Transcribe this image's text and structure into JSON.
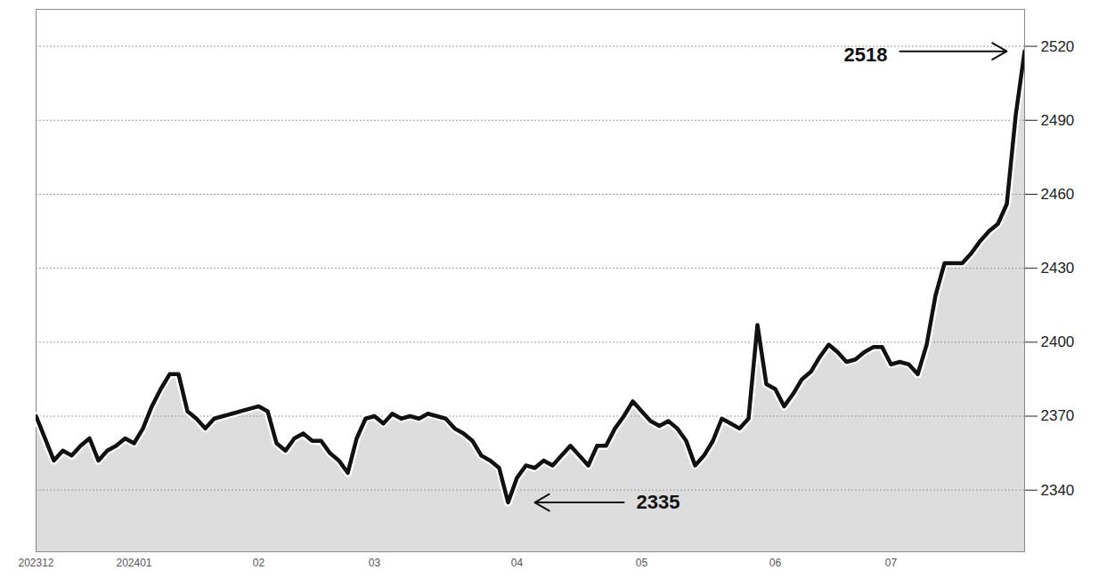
{
  "chart_data": {
    "type": "line",
    "categories": [
      "202312",
      null,
      null,
      null,
      null,
      null,
      null,
      null,
      null,
      null,
      null,
      "202401",
      null,
      null,
      null,
      null,
      null,
      null,
      null,
      null,
      null,
      null,
      null,
      null,
      null,
      "02",
      null,
      null,
      null,
      null,
      null,
      null,
      null,
      null,
      null,
      null,
      null,
      null,
      "03",
      null,
      null,
      null,
      null,
      null,
      null,
      null,
      null,
      null,
      null,
      null,
      null,
      null,
      null,
      null,
      "04",
      null,
      null,
      null,
      null,
      null,
      null,
      null,
      null,
      null,
      null,
      null,
      null,
      null,
      "05",
      null,
      null,
      null,
      null,
      null,
      null,
      null,
      null,
      null,
      null,
      null,
      null,
      null,
      null,
      "06",
      null,
      null,
      null,
      null,
      null,
      null,
      null,
      null,
      null,
      null,
      null,
      null,
      "07",
      null,
      null,
      null,
      null,
      null,
      null,
      null,
      null,
      null,
      null,
      null,
      null,
      null,
      null,
      null
    ],
    "values": [
      2370,
      2361,
      2352,
      2356,
      2354,
      2358,
      2361,
      2352,
      2356,
      2358,
      2361,
      2359,
      2365,
      2374,
      2381,
      2387,
      2387,
      2372,
      2369,
      2365,
      2369,
      2370,
      2371,
      2372,
      2373,
      2374,
      2372,
      2359,
      2356,
      2361,
      2363,
      2360,
      2360,
      2355,
      2352,
      2347,
      2361,
      2369,
      2370,
      2367,
      2371,
      2369,
      2370,
      2369,
      2371,
      2370,
      2369,
      2365,
      2363,
      2360,
      2354,
      2352,
      2349,
      2335,
      2345,
      2350,
      2349,
      2352,
      2350,
      2354,
      2358,
      2354,
      2350,
      2358,
      2358,
      2365,
      2370,
      2376,
      2372,
      2368,
      2366,
      2368,
      2365,
      2360,
      2350,
      2354,
      2360,
      2369,
      2367,
      2365,
      2369,
      2407,
      2383,
      2381,
      2374,
      2379,
      2385,
      2388,
      2394,
      2399,
      2396,
      2392,
      2393,
      2396,
      2398,
      2398,
      2391,
      2392,
      2391,
      2387,
      2399,
      2419,
      2432,
      2432,
      2432,
      2436,
      2441,
      2445,
      2448,
      2456,
      2492,
      2518
    ],
    "color": "#111111",
    "ylim": [
      2315,
      2535
    ],
    "yticks": [
      2340,
      2370,
      2400,
      2430,
      2460,
      2490,
      2520
    ],
    "grid": true,
    "annotations": [
      {
        "value": 2518,
        "label": "2518"
      },
      {
        "value": 2335,
        "label": "2335"
      }
    ]
  }
}
